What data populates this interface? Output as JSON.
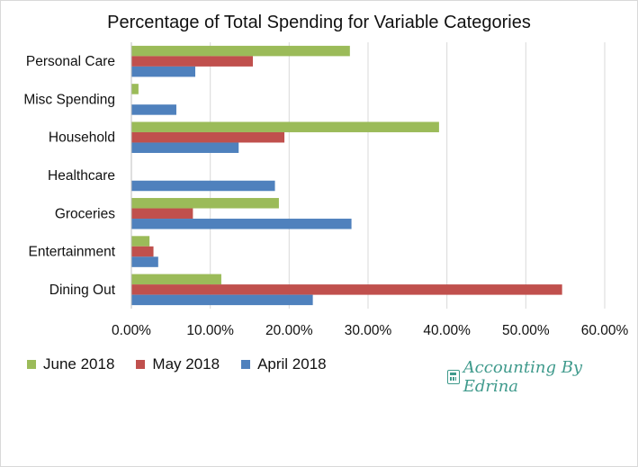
{
  "chart_data": {
    "type": "bar",
    "orientation": "horizontal",
    "title": "Percentage of Total Spending for Variable Categories",
    "categories": [
      "Personal Care",
      "Misc Spending",
      "Household",
      "Healthcare",
      "Groceries",
      "Entertainment",
      "Dining Out"
    ],
    "series": [
      {
        "name": "June 2018",
        "color": "#9bbb59",
        "values": [
          27.7,
          0.9,
          39.0,
          0.0,
          18.7,
          2.3,
          11.4
        ]
      },
      {
        "name": "May 2018",
        "color": "#c0504d",
        "values": [
          15.4,
          0.0,
          19.4,
          0.0,
          7.8,
          2.8,
          54.6
        ]
      },
      {
        "name": "April 2018",
        "color": "#4f81bd",
        "values": [
          8.1,
          5.7,
          13.6,
          18.2,
          27.9,
          3.4,
          23.0
        ]
      }
    ],
    "xlim": [
      0,
      60
    ],
    "ticks": [
      "0.00%",
      "10.00%",
      "20.00%",
      "30.00%",
      "40.00%",
      "50.00%",
      "60.00%"
    ],
    "gridlines": "vertical",
    "legend_position": "bottom-left",
    "xlabel": "",
    "ylabel": ""
  },
  "watermark": {
    "text": "Accounting By Edrina"
  }
}
